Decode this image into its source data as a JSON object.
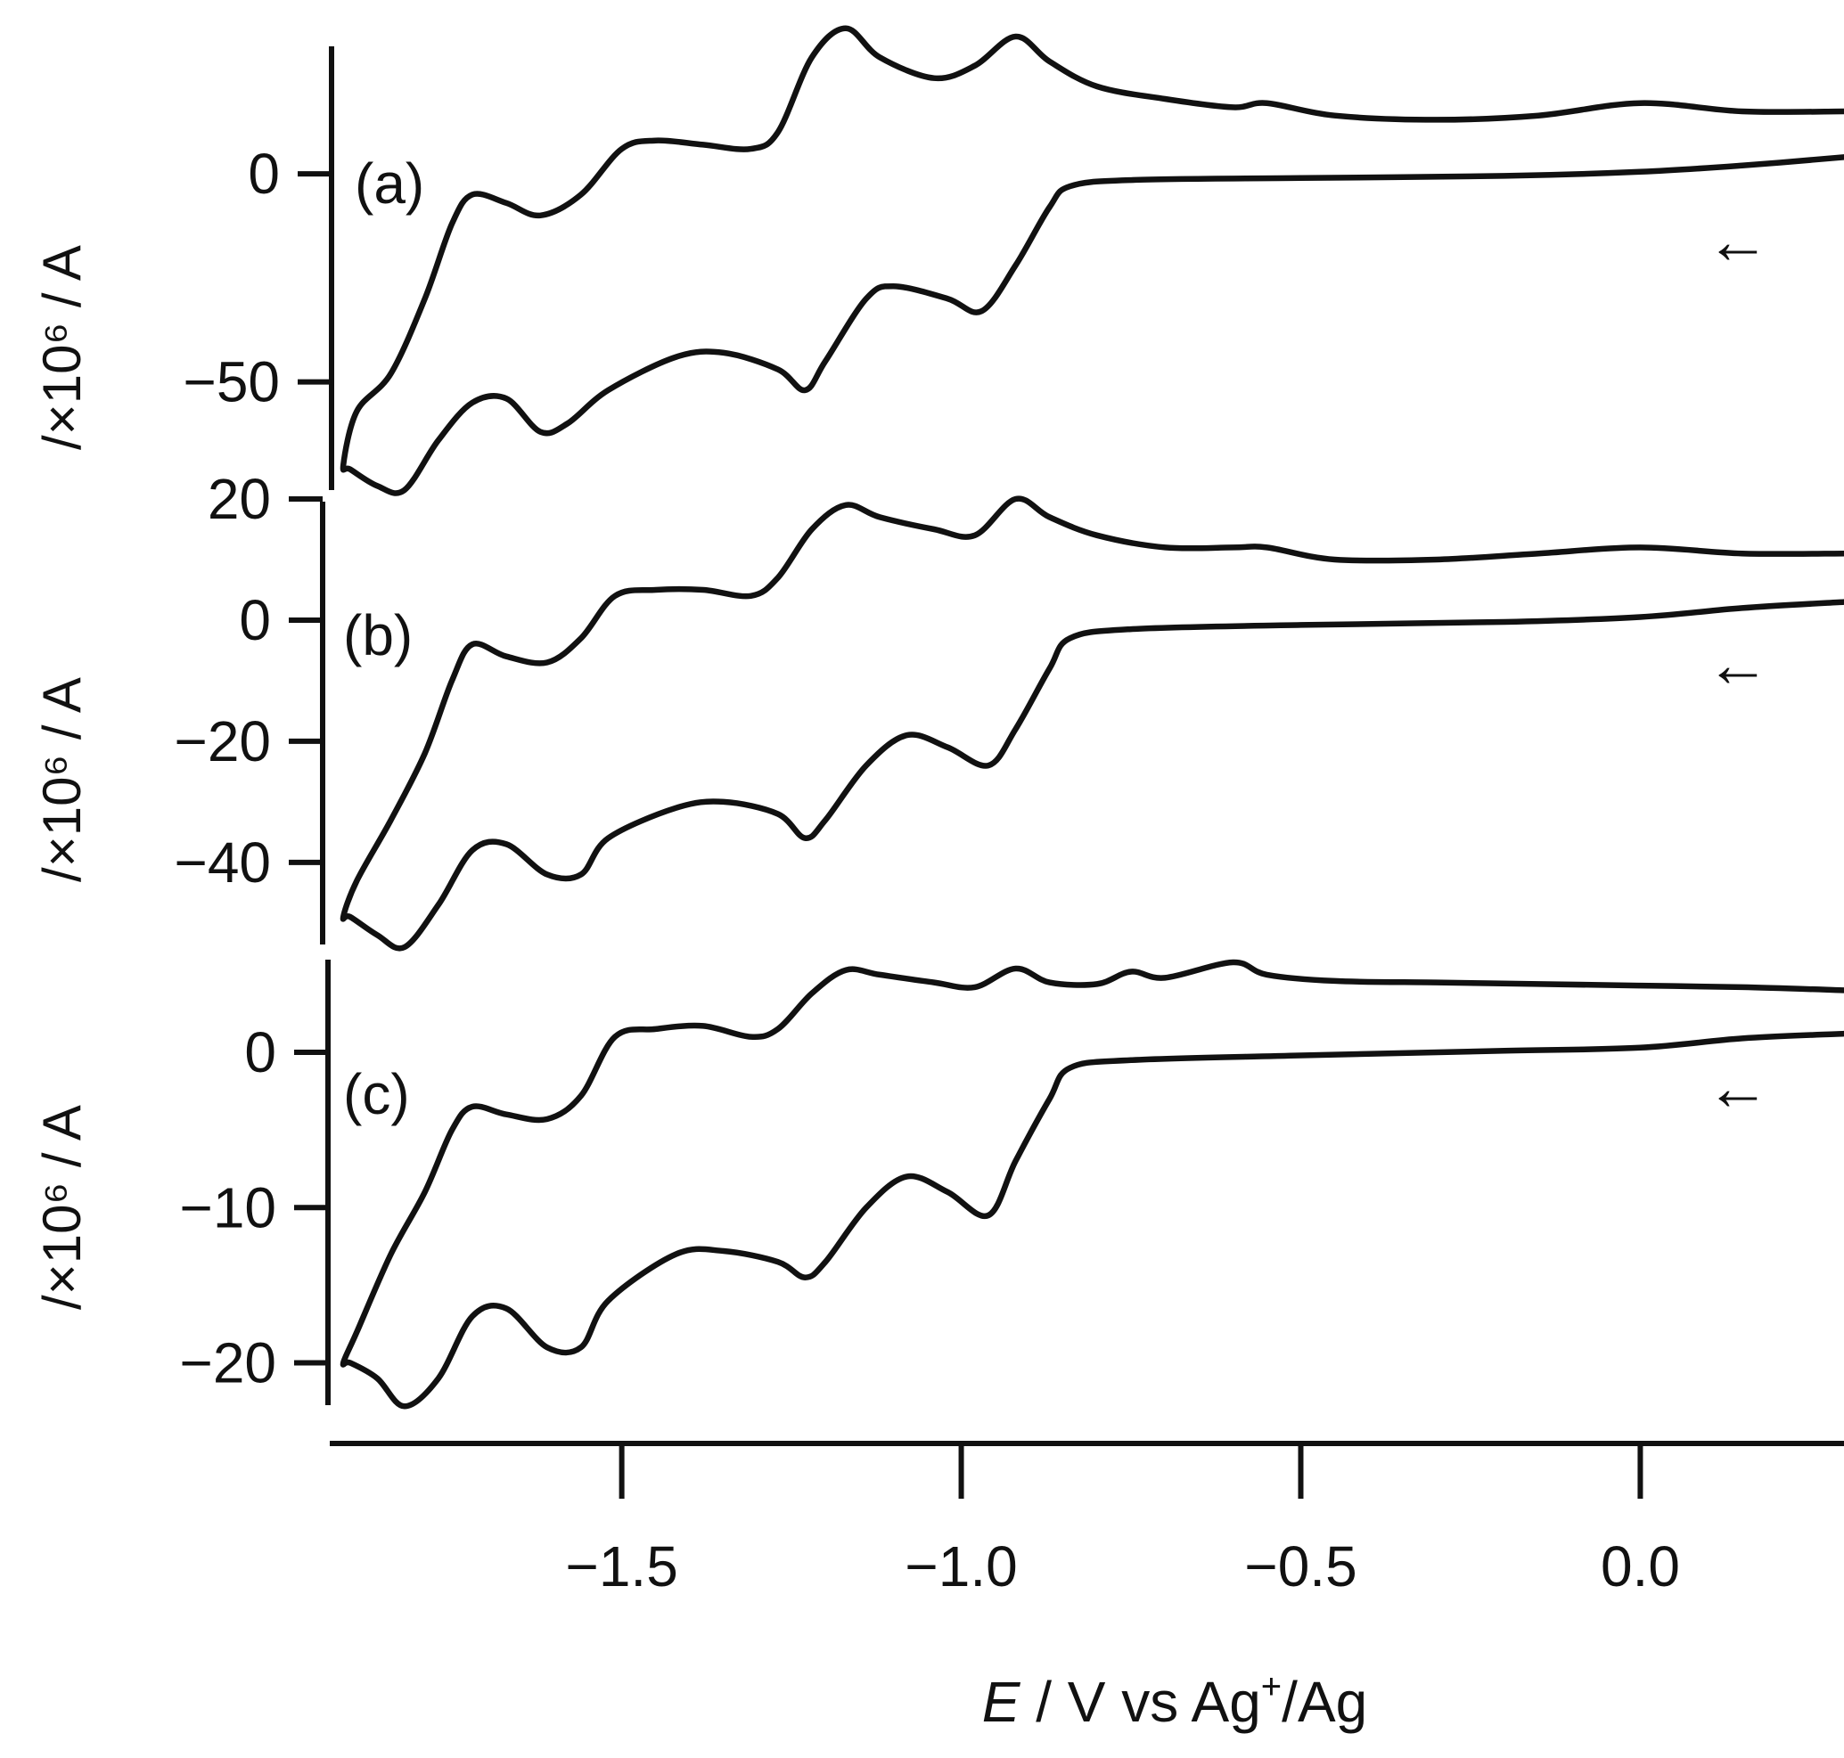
{
  "chart_data": {
    "type": "line",
    "description_axis": "cyclic voltammograms, three stacked panels sharing the potential axis",
    "x_axis": {
      "title_italic": "E",
      "title_rest": " / V vs Ag",
      "title_sup": "+",
      "title_end": "/Ag",
      "range": [
        -1.93,
        0.3
      ],
      "ticks": [
        -1.5,
        -1.0,
        -0.5,
        0.0
      ],
      "tick_labels": [
        "−1.5",
        "−1.0",
        "−0.5",
        "0.0"
      ]
    },
    "panels": [
      {
        "label": "(a)",
        "ylabel": "/×10⁶ / A",
        "ylim": [
          -76,
          30
        ],
        "ticks": [
          0,
          -50
        ],
        "tick_labels": [
          "0",
          "−50"
        ],
        "scan_arrow": "←",
        "trace": [
          [
            0.3,
            4
          ],
          [
            0.15,
            2
          ],
          [
            0.0,
            0.5
          ],
          [
            -0.2,
            -0.5
          ],
          [
            -0.5,
            -1
          ],
          [
            -0.75,
            -1.5
          ],
          [
            -0.84,
            -3
          ],
          [
            -0.87,
            -8
          ],
          [
            -0.92,
            -22
          ],
          [
            -0.97,
            -33
          ],
          [
            -1.02,
            -30
          ],
          [
            -1.1,
            -27
          ],
          [
            -1.14,
            -30
          ],
          [
            -1.2,
            -45
          ],
          [
            -1.23,
            -52
          ],
          [
            -1.27,
            -47
          ],
          [
            -1.35,
            -43
          ],
          [
            -1.42,
            -44
          ],
          [
            -1.52,
            -52
          ],
          [
            -1.58,
            -60
          ],
          [
            -1.62,
            -62
          ],
          [
            -1.67,
            -54
          ],
          [
            -1.72,
            -55
          ],
          [
            -1.77,
            -64
          ],
          [
            -1.82,
            -76
          ],
          [
            -1.86,
            -75
          ],
          [
            -1.9,
            -71
          ],
          [
            -1.91,
            -70
          ],
          [
            -1.89,
            -57
          ],
          [
            -1.84,
            -48
          ],
          [
            -1.79,
            -30
          ],
          [
            -1.75,
            -12
          ],
          [
            -1.72,
            -5
          ],
          [
            -1.67,
            -7
          ],
          [
            -1.62,
            -10
          ],
          [
            -1.56,
            -5
          ],
          [
            -1.5,
            6
          ],
          [
            -1.45,
            8
          ],
          [
            -1.38,
            7
          ],
          [
            -1.31,
            6
          ],
          [
            -1.27,
            10
          ],
          [
            -1.22,
            28
          ],
          [
            -1.17,
            35
          ],
          [
            -1.12,
            28
          ],
          [
            -1.04,
            23
          ],
          [
            -0.98,
            26
          ],
          [
            -0.92,
            33
          ],
          [
            -0.87,
            27
          ],
          [
            -0.8,
            21
          ],
          [
            -0.7,
            18
          ],
          [
            -0.6,
            16
          ],
          [
            -0.55,
            17
          ],
          [
            -0.45,
            14
          ],
          [
            -0.3,
            13
          ],
          [
            -0.15,
            14
          ],
          [
            0.0,
            17
          ],
          [
            0.15,
            15
          ],
          [
            0.3,
            15
          ]
        ]
      },
      {
        "label": "(b)",
        "ylabel": "/×10⁶ / A",
        "ylim": [
          -54,
          20
        ],
        "ticks": [
          20,
          0,
          -20,
          -40
        ],
        "tick_labels": [
          "20",
          "0",
          "−20",
          "−40"
        ],
        "scan_arrow": "←",
        "trace": [
          [
            0.3,
            3
          ],
          [
            0.15,
            2
          ],
          [
            0.0,
            0.5
          ],
          [
            -0.2,
            -0.3
          ],
          [
            -0.5,
            -0.8
          ],
          [
            -0.75,
            -1.5
          ],
          [
            -0.84,
            -3
          ],
          [
            -0.87,
            -8
          ],
          [
            -0.92,
            -18
          ],
          [
            -0.96,
            -24
          ],
          [
            -1.02,
            -21
          ],
          [
            -1.08,
            -19
          ],
          [
            -1.14,
            -24
          ],
          [
            -1.2,
            -33
          ],
          [
            -1.23,
            -36
          ],
          [
            -1.27,
            -32
          ],
          [
            -1.35,
            -30
          ],
          [
            -1.42,
            -31
          ],
          [
            -1.52,
            -36
          ],
          [
            -1.56,
            -42
          ],
          [
            -1.61,
            -42
          ],
          [
            -1.67,
            -37
          ],
          [
            -1.72,
            -38
          ],
          [
            -1.77,
            -47
          ],
          [
            -1.82,
            -54
          ],
          [
            -1.86,
            -52
          ],
          [
            -1.9,
            -49
          ],
          [
            -1.91,
            -49
          ],
          [
            -1.89,
            -43
          ],
          [
            -1.84,
            -33
          ],
          [
            -1.79,
            -22
          ],
          [
            -1.75,
            -10
          ],
          [
            -1.72,
            -4
          ],
          [
            -1.67,
            -6
          ],
          [
            -1.61,
            -7
          ],
          [
            -1.56,
            -3
          ],
          [
            -1.51,
            4
          ],
          [
            -1.45,
            5
          ],
          [
            -1.38,
            5
          ],
          [
            -1.31,
            4
          ],
          [
            -1.27,
            7
          ],
          [
            -1.22,
            15
          ],
          [
            -1.17,
            19
          ],
          [
            -1.12,
            17
          ],
          [
            -1.04,
            15
          ],
          [
            -0.98,
            14
          ],
          [
            -0.92,
            20
          ],
          [
            -0.87,
            17
          ],
          [
            -0.8,
            14
          ],
          [
            -0.7,
            12
          ],
          [
            -0.6,
            12
          ],
          [
            -0.55,
            12
          ],
          [
            -0.45,
            10
          ],
          [
            -0.3,
            10
          ],
          [
            -0.15,
            11
          ],
          [
            0.0,
            12
          ],
          [
            0.15,
            11
          ],
          [
            0.3,
            11
          ]
        ]
      },
      {
        "label": "(c)",
        "ylabel": "/×10⁶ / A",
        "ylim": [
          -22.9,
          5.8
        ],
        "ticks": [
          0,
          -10,
          -20
        ],
        "tick_labels": [
          "0",
          "−10",
          "−20"
        ],
        "scan_arrow": "←",
        "trace": [
          [
            0.3,
            1.2
          ],
          [
            0.15,
            0.9
          ],
          [
            0.0,
            0.3
          ],
          [
            -0.2,
            0.1
          ],
          [
            -0.5,
            -0.2
          ],
          [
            -0.75,
            -0.5
          ],
          [
            -0.84,
            -1
          ],
          [
            -0.87,
            -3
          ],
          [
            -0.92,
            -7
          ],
          [
            -0.96,
            -10.5
          ],
          [
            -1.02,
            -9
          ],
          [
            -1.08,
            -8
          ],
          [
            -1.14,
            -10
          ],
          [
            -1.2,
            -13.5
          ],
          [
            -1.23,
            -14.5
          ],
          [
            -1.27,
            -13.5
          ],
          [
            -1.35,
            -12.8
          ],
          [
            -1.42,
            -13
          ],
          [
            -1.52,
            -16
          ],
          [
            -1.56,
            -19
          ],
          [
            -1.61,
            -19
          ],
          [
            -1.67,
            -16.5
          ],
          [
            -1.72,
            -17
          ],
          [
            -1.77,
            -21
          ],
          [
            -1.82,
            -22.8
          ],
          [
            -1.86,
            -21
          ],
          [
            -1.9,
            -20
          ],
          [
            -1.91,
            -20
          ],
          [
            -1.89,
            -18
          ],
          [
            -1.84,
            -13
          ],
          [
            -1.79,
            -9
          ],
          [
            -1.75,
            -5
          ],
          [
            -1.72,
            -3.5
          ],
          [
            -1.67,
            -4
          ],
          [
            -1.61,
            -4.3
          ],
          [
            -1.56,
            -2.8
          ],
          [
            -1.51,
            1
          ],
          [
            -1.45,
            1.5
          ],
          [
            -1.38,
            1.7
          ],
          [
            -1.31,
            1
          ],
          [
            -1.27,
            1.5
          ],
          [
            -1.22,
            3.8
          ],
          [
            -1.17,
            5.3
          ],
          [
            -1.12,
            5
          ],
          [
            -1.04,
            4.5
          ],
          [
            -0.98,
            4.2
          ],
          [
            -0.92,
            5.4
          ],
          [
            -0.87,
            4.5
          ],
          [
            -0.8,
            4.4
          ],
          [
            -0.75,
            5.2
          ],
          [
            -0.7,
            4.8
          ],
          [
            -0.6,
            5.8
          ],
          [
            -0.55,
            5
          ],
          [
            -0.45,
            4.6
          ],
          [
            -0.3,
            4.5
          ],
          [
            -0.15,
            4.4
          ],
          [
            0.0,
            4.3
          ],
          [
            0.15,
            4.2
          ],
          [
            0.3,
            4.0
          ]
        ]
      }
    ]
  }
}
